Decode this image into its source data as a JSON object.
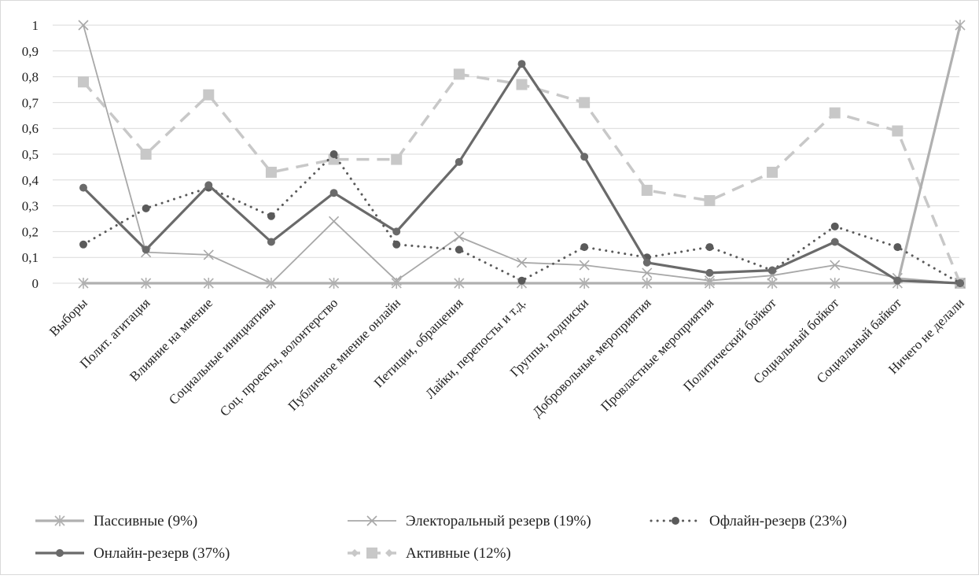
{
  "chart_data": {
    "type": "line",
    "title": "",
    "xlabel": "",
    "ylabel": "",
    "ylim": [
      0,
      1
    ],
    "yticks": [
      "0",
      "0,1",
      "0,2",
      "0,3",
      "0,4",
      "0,5",
      "0,6",
      "0,7",
      "0,8",
      "0,9",
      "1"
    ],
    "grid": true,
    "legend_position": "bottom",
    "categories": [
      "Выборы",
      "Полит. агитация",
      "Влияние на мнение",
      "Социальные инициативы",
      "Соц. проекты, волонтерство",
      "Публичное мнение онлайн",
      "Петиции, обращения",
      "Лайки, перепосты и т.д.",
      "Группы, подписки",
      "Добровольные мероприятия",
      "Провластные мероприятия",
      "Политический бойкот",
      "Социальный бойкот",
      "Социальный байкот",
      "Ничего не делали"
    ],
    "series": [
      {
        "name": "Пассивные (9%)",
        "color": "#b0b0b0",
        "style": "solid-thick",
        "marker": "star",
        "values": [
          0,
          0,
          0,
          0,
          0,
          0,
          0,
          0,
          0,
          0,
          0,
          0,
          0,
          0,
          1
        ]
      },
      {
        "name": "Электоральный резерв (19%)",
        "color": "#a8a8a8",
        "style": "solid-thin",
        "marker": "x",
        "values": [
          1,
          0.12,
          0.11,
          0,
          0.24,
          0.01,
          0.18,
          0.08,
          0.07,
          0.04,
          0.01,
          0.03,
          0.07,
          0.02,
          0
        ]
      },
      {
        "name": "Офлайн-резерв (23%)",
        "color": "#5a5a5a",
        "style": "dotted",
        "marker": "circle",
        "values": [
          0.15,
          0.29,
          0.37,
          0.26,
          0.5,
          0.15,
          0.13,
          0.01,
          0.14,
          0.1,
          0.14,
          0.05,
          0.22,
          0.14,
          0
        ]
      },
      {
        "name": "Онлайн-резерв (37%)",
        "color": "#6a6a6a",
        "style": "solid-thick",
        "marker": "circle",
        "values": [
          0.37,
          0.13,
          0.38,
          0.16,
          0.35,
          0.2,
          0.47,
          0.85,
          0.49,
          0.08,
          0.04,
          0.05,
          0.16,
          0.01,
          0
        ]
      },
      {
        "name": "Активные (12%)",
        "color": "#c8c8c8",
        "style": "dashed",
        "marker": "square",
        "values": [
          0.78,
          0.5,
          0.73,
          0.43,
          0.48,
          0.48,
          0.81,
          0.77,
          0.7,
          0.36,
          0.32,
          0.43,
          0.66,
          0.59,
          0
        ]
      }
    ]
  }
}
